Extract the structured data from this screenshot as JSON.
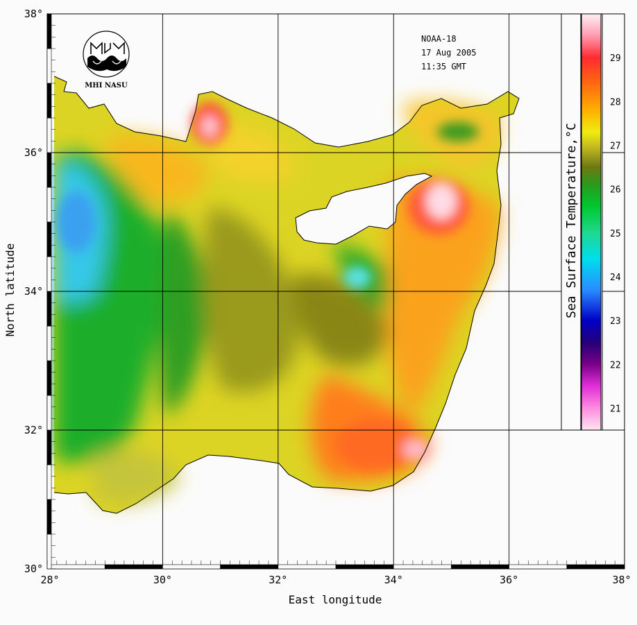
{
  "map": {
    "x_axis_title": "East longitude",
    "y_axis_title": "North latitude",
    "lon_range": [
      28,
      38
    ],
    "lat_range": [
      30,
      38
    ],
    "lon_ticks": [
      {
        "value": 28,
        "label": "28°"
      },
      {
        "value": 30,
        "label": "30°"
      },
      {
        "value": 32,
        "label": "32°"
      },
      {
        "value": 34,
        "label": "34°"
      },
      {
        "value": 36,
        "label": "36°"
      },
      {
        "value": 38,
        "label": "38°"
      }
    ],
    "lat_ticks": [
      {
        "value": 30,
        "label": "30°"
      },
      {
        "value": 32,
        "label": "32°"
      },
      {
        "value": 34,
        "label": "34°"
      },
      {
        "value": 36,
        "label": "36°"
      },
      {
        "value": 38,
        "label": "38°"
      }
    ],
    "land_color": "#fbfbfb",
    "grid": true
  },
  "info": {
    "satellite": "NOAA-18",
    "date": "17 Aug 2005",
    "time": "11:35 GMT"
  },
  "logo": {
    "text": "MHI NASU"
  },
  "colorbar": {
    "title": "Sea Surface Temperature,°C",
    "range": [
      20.5,
      30
    ],
    "ticks": [
      "21",
      "22",
      "23",
      "24",
      "25",
      "26",
      "27",
      "28",
      "29"
    ],
    "stops": [
      {
        "value": 20.5,
        "color": "#ffe4f2"
      },
      {
        "value": 21.0,
        "color": "#ff8cde"
      },
      {
        "value": 21.5,
        "color": "#e030d8"
      },
      {
        "value": 22.0,
        "color": "#7a0088"
      },
      {
        "value": 22.5,
        "color": "#240078"
      },
      {
        "value": 23.0,
        "color": "#0000c8"
      },
      {
        "value": 23.7,
        "color": "#2a8cff"
      },
      {
        "value": 24.4,
        "color": "#00ddee"
      },
      {
        "value": 25.0,
        "color": "#20d890"
      },
      {
        "value": 25.6,
        "color": "#00c830"
      },
      {
        "value": 26.1,
        "color": "#2a9a1e"
      },
      {
        "value": 26.5,
        "color": "#6e7812"
      },
      {
        "value": 26.9,
        "color": "#b8b020"
      },
      {
        "value": 27.3,
        "color": "#f0ec10"
      },
      {
        "value": 27.8,
        "color": "#ffb000"
      },
      {
        "value": 28.4,
        "color": "#ff6a10"
      },
      {
        "value": 29.0,
        "color": "#ff2a30"
      },
      {
        "value": 29.5,
        "color": "#ff9ab0"
      },
      {
        "value": 30.0,
        "color": "#fff0f4"
      }
    ]
  }
}
